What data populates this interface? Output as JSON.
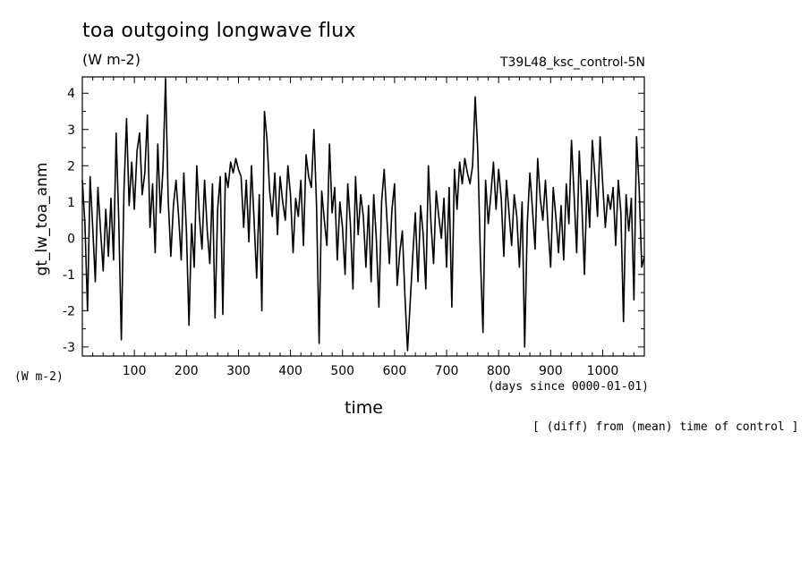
{
  "chart_data": {
    "type": "line",
    "title": "toa outgoing longwave flux",
    "units": "(W m-2)",
    "run_name": "T39L48_ksc_control-5N",
    "ylabel": "gt_lw_toa_anm",
    "yunits": "(W m-2)",
    "xlabel": "time",
    "xunits": "(days since 0000-01-01)",
    "note": "[ (diff) from (mean) time of control ]",
    "xlim": [
      0,
      1080
    ],
    "ylim": [
      -3.25,
      4.45
    ],
    "xticks": [
      100,
      200,
      300,
      400,
      500,
      600,
      700,
      800,
      900,
      1000
    ],
    "yticks": [
      -3,
      -2,
      -1,
      0,
      1,
      2,
      3,
      4
    ],
    "grid": false,
    "series": [
      {
        "x": [
          0,
          5,
          10,
          15,
          20,
          25,
          30,
          35,
          40,
          45,
          50,
          55,
          60,
          65,
          70,
          75,
          80,
          85,
          90,
          95,
          100,
          105,
          110,
          115,
          120,
          125,
          130,
          135,
          140,
          145,
          150,
          155,
          160,
          165,
          170,
          175,
          180,
          185,
          190,
          195,
          200,
          205,
          210,
          215,
          220,
          225,
          230,
          235,
          240,
          245,
          250,
          255,
          260,
          265,
          270,
          275,
          280,
          285,
          290,
          295,
          300,
          305,
          310,
          315,
          320,
          325,
          330,
          335,
          340,
          345,
          350,
          355,
          360,
          365,
          370,
          375,
          380,
          385,
          390,
          395,
          400,
          405,
          410,
          415,
          420,
          425,
          430,
          435,
          440,
          445,
          450,
          455,
          460,
          465,
          470,
          475,
          480,
          485,
          490,
          495,
          500,
          505,
          510,
          515,
          520,
          525,
          530,
          535,
          540,
          545,
          550,
          555,
          560,
          565,
          570,
          575,
          580,
          585,
          590,
          595,
          600,
          605,
          610,
          615,
          620,
          625,
          630,
          635,
          640,
          645,
          650,
          655,
          660,
          665,
          670,
          675,
          680,
          685,
          690,
          695,
          700,
          705,
          710,
          715,
          720,
          725,
          730,
          735,
          740,
          745,
          750,
          755,
          760,
          765,
          770,
          775,
          780,
          785,
          790,
          795,
          800,
          805,
          810,
          815,
          820,
          825,
          830,
          835,
          840,
          845,
          850,
          855,
          860,
          865,
          870,
          875,
          880,
          885,
          890,
          895,
          900,
          905,
          910,
          915,
          920,
          925,
          930,
          935,
          940,
          945,
          950,
          955,
          960,
          965,
          970,
          975,
          980,
          985,
          990,
          995,
          1000,
          1005,
          1010,
          1015,
          1020,
          1025,
          1030,
          1035,
          1040,
          1045,
          1050,
          1055,
          1060,
          1065,
          1070,
          1075,
          1080
        ],
        "y": [
          1.6,
          0.4,
          -2.0,
          1.7,
          0.3,
          -1.2,
          1.4,
          0.2,
          -0.9,
          0.8,
          -0.5,
          1.1,
          -0.6,
          2.9,
          0.5,
          -2.8,
          1.3,
          3.3,
          0.9,
          2.1,
          0.8,
          2.4,
          2.9,
          1.2,
          1.8,
          3.4,
          0.3,
          1.5,
          -0.4,
          2.6,
          0.7,
          1.9,
          4.4,
          1.1,
          -0.5,
          0.9,
          1.6,
          0.6,
          -0.6,
          1.8,
          0.2,
          -2.4,
          0.4,
          -0.8,
          2.0,
          0.6,
          -0.3,
          1.6,
          0.2,
          -0.7,
          1.5,
          -2.2,
          0.8,
          1.7,
          -2.1,
          1.8,
          1.4,
          2.1,
          1.8,
          2.2,
          1.9,
          1.7,
          0.3,
          1.6,
          -0.1,
          2.0,
          0.5,
          -1.1,
          1.2,
          -2.0,
          3.5,
          2.7,
          1.3,
          0.6,
          1.8,
          0.1,
          1.7,
          1.0,
          0.5,
          2.0,
          1.2,
          -0.4,
          1.1,
          0.6,
          1.6,
          -0.2,
          2.3,
          1.7,
          1.4,
          3.0,
          0.9,
          -2.9,
          1.3,
          0.5,
          -0.2,
          2.6,
          0.7,
          1.4,
          -0.6,
          1.0,
          0.3,
          -1.0,
          1.5,
          0.4,
          -1.4,
          1.7,
          0.1,
          1.2,
          0.6,
          -0.8,
          0.9,
          -1.2,
          1.2,
          0.0,
          -1.9,
          1.0,
          1.9,
          0.6,
          -0.7,
          0.8,
          1.5,
          -1.3,
          -0.4,
          0.2,
          -1.6,
          -3.1,
          -1.8,
          -0.5,
          0.7,
          -1.2,
          0.9,
          0.1,
          -1.4,
          2.0,
          0.4,
          -0.7,
          1.3,
          0.6,
          0.0,
          1.1,
          -0.8,
          1.4,
          -1.9,
          1.9,
          0.8,
          2.1,
          1.5,
          2.2,
          1.8,
          1.5,
          2.0,
          3.9,
          2.4,
          -0.5,
          -2.6,
          1.6,
          0.4,
          1.2,
          2.1,
          0.8,
          1.9,
          1.1,
          -0.5,
          1.6,
          0.7,
          -0.2,
          1.2,
          0.6,
          -0.8,
          1.0,
          -3.0,
          0.4,
          1.8,
          0.8,
          -0.3,
          2.2,
          1.1,
          0.5,
          1.6,
          0.3,
          -0.8,
          1.4,
          0.6,
          -0.4,
          0.9,
          -0.6,
          1.5,
          0.4,
          2.7,
          1.2,
          -0.4,
          2.4,
          0.9,
          -1.0,
          1.6,
          0.3,
          2.7,
          1.7,
          0.6,
          2.8,
          1.5,
          0.3,
          1.2,
          0.8,
          1.4,
          -0.2,
          1.6,
          0.7,
          -2.3,
          1.2,
          0.2,
          1.1,
          -1.7,
          2.8,
          1.4,
          -0.8,
          -0.5
        ]
      }
    ]
  }
}
